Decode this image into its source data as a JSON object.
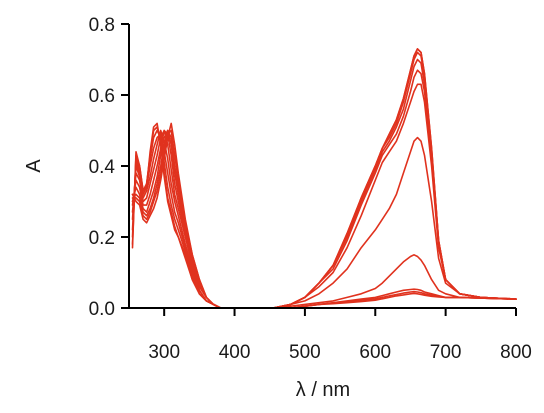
{
  "chart_data": {
    "type": "line",
    "title": "",
    "xlabel": "λ / nm",
    "ylabel": "A",
    "xlim": [
      250,
      800
    ],
    "ylim": [
      0.0,
      0.8
    ],
    "grid": false,
    "x_ticks": [
      300,
      400,
      500,
      600,
      700,
      800
    ],
    "x_tick_labels": [
      "300",
      "400",
      "500",
      "600",
      "700",
      "800"
    ],
    "y_ticks": [
      0.0,
      0.2,
      0.4,
      0.6,
      0.8
    ],
    "y_tick_labels": [
      "0.0",
      "0.2",
      "0.4",
      "0.6",
      "0.8"
    ],
    "colors": {
      "series": "#e0321e",
      "axis": "#000000"
    },
    "x_uv": [
      255,
      260,
      265,
      270,
      275,
      280,
      285,
      290,
      295,
      300,
      305,
      310,
      315,
      320,
      330,
      340,
      350,
      360,
      370,
      380
    ],
    "x_vis": [
      455,
      480,
      500,
      520,
      540,
      560,
      580,
      600,
      610,
      620,
      630,
      640,
      650,
      655,
      660,
      665,
      670,
      680,
      690,
      700,
      720,
      750,
      800
    ],
    "series": [
      {
        "uv": [
          0.17,
          0.44,
          0.4,
          0.33,
          0.34,
          0.44,
          0.51,
          0.52,
          0.46,
          0.37,
          0.3,
          0.26,
          0.22,
          0.2,
          0.14,
          0.08,
          0.04,
          0.02,
          0.01,
          0.0
        ],
        "vis": [
          0.0,
          0.0,
          0.005,
          0.01,
          0.015,
          0.02,
          0.025,
          0.03,
          0.035,
          0.04,
          0.045,
          0.05,
          0.052,
          0.053,
          0.052,
          0.05,
          0.045,
          0.04,
          0.035,
          0.03,
          0.03,
          0.028,
          0.025
        ]
      },
      {
        "uv": [
          0.18,
          0.43,
          0.4,
          0.33,
          0.35,
          0.43,
          0.5,
          0.51,
          0.47,
          0.38,
          0.31,
          0.27,
          0.23,
          0.2,
          0.15,
          0.08,
          0.04,
          0.02,
          0.01,
          0.0
        ],
        "vis": [
          0.0,
          0.0,
          0.005,
          0.01,
          0.014,
          0.018,
          0.022,
          0.026,
          0.03,
          0.034,
          0.038,
          0.042,
          0.045,
          0.046,
          0.045,
          0.043,
          0.04,
          0.036,
          0.033,
          0.03,
          0.03,
          0.028,
          0.025
        ]
      },
      {
        "uv": [
          0.2,
          0.42,
          0.39,
          0.33,
          0.35,
          0.42,
          0.48,
          0.5,
          0.48,
          0.41,
          0.34,
          0.29,
          0.25,
          0.22,
          0.16,
          0.09,
          0.04,
          0.02,
          0.01,
          0.0
        ],
        "vis": [
          0.0,
          0.0,
          0.005,
          0.01,
          0.012,
          0.015,
          0.018,
          0.022,
          0.026,
          0.03,
          0.034,
          0.037,
          0.04,
          0.041,
          0.04,
          0.038,
          0.036,
          0.033,
          0.031,
          0.03,
          0.03,
          0.028,
          0.025
        ]
      },
      {
        "uv": [
          0.22,
          0.41,
          0.38,
          0.32,
          0.34,
          0.4,
          0.45,
          0.48,
          0.49,
          0.44,
          0.38,
          0.32,
          0.27,
          0.24,
          0.17,
          0.1,
          0.05,
          0.02,
          0.01,
          0.0
        ],
        "vis": [
          0.0,
          0.005,
          0.01,
          0.015,
          0.02,
          0.03,
          0.04,
          0.055,
          0.07,
          0.09,
          0.11,
          0.13,
          0.145,
          0.15,
          0.145,
          0.135,
          0.12,
          0.08,
          0.05,
          0.04,
          0.03,
          0.028,
          0.025
        ]
      },
      {
        "uv": [
          0.25,
          0.4,
          0.37,
          0.31,
          0.33,
          0.37,
          0.42,
          0.46,
          0.5,
          0.47,
          0.42,
          0.35,
          0.3,
          0.26,
          0.18,
          0.11,
          0.05,
          0.02,
          0.01,
          0.0
        ],
        "vis": [
          0.0,
          0.01,
          0.02,
          0.04,
          0.07,
          0.11,
          0.17,
          0.22,
          0.25,
          0.28,
          0.32,
          0.38,
          0.44,
          0.47,
          0.48,
          0.47,
          0.43,
          0.3,
          0.14,
          0.07,
          0.04,
          0.03,
          0.025
        ]
      },
      {
        "uv": [
          0.27,
          0.38,
          0.36,
          0.3,
          0.31,
          0.35,
          0.39,
          0.43,
          0.48,
          0.5,
          0.46,
          0.39,
          0.32,
          0.28,
          0.2,
          0.12,
          0.06,
          0.03,
          0.01,
          0.0
        ],
        "vis": [
          0.0,
          0.01,
          0.03,
          0.06,
          0.1,
          0.17,
          0.26,
          0.36,
          0.41,
          0.44,
          0.47,
          0.52,
          0.58,
          0.61,
          0.63,
          0.63,
          0.58,
          0.4,
          0.17,
          0.08,
          0.04,
          0.03,
          0.025
        ]
      },
      {
        "uv": [
          0.29,
          0.36,
          0.34,
          0.29,
          0.29,
          0.32,
          0.36,
          0.4,
          0.45,
          0.5,
          0.49,
          0.43,
          0.35,
          0.3,
          0.21,
          0.13,
          0.06,
          0.03,
          0.01,
          0.0
        ],
        "vis": [
          0.0,
          0.01,
          0.03,
          0.07,
          0.11,
          0.19,
          0.29,
          0.38,
          0.43,
          0.46,
          0.49,
          0.54,
          0.61,
          0.65,
          0.67,
          0.66,
          0.61,
          0.42,
          0.18,
          0.08,
          0.04,
          0.03,
          0.025
        ]
      },
      {
        "uv": [
          0.3,
          0.34,
          0.32,
          0.28,
          0.27,
          0.3,
          0.33,
          0.37,
          0.43,
          0.48,
          0.5,
          0.46,
          0.38,
          0.32,
          0.22,
          0.14,
          0.07,
          0.03,
          0.01,
          0.0
        ],
        "vis": [
          0.0,
          0.01,
          0.03,
          0.07,
          0.12,
          0.2,
          0.3,
          0.39,
          0.44,
          0.47,
          0.51,
          0.56,
          0.64,
          0.68,
          0.7,
          0.69,
          0.63,
          0.43,
          0.18,
          0.08,
          0.04,
          0.03,
          0.025
        ]
      },
      {
        "uv": [
          0.31,
          0.32,
          0.31,
          0.27,
          0.26,
          0.28,
          0.31,
          0.35,
          0.4,
          0.46,
          0.5,
          0.48,
          0.4,
          0.34,
          0.23,
          0.14,
          0.07,
          0.03,
          0.01,
          0.0
        ],
        "vis": [
          0.0,
          0.01,
          0.03,
          0.07,
          0.12,
          0.2,
          0.31,
          0.4,
          0.45,
          0.48,
          0.52,
          0.58,
          0.66,
          0.7,
          0.72,
          0.71,
          0.65,
          0.44,
          0.19,
          0.08,
          0.04,
          0.03,
          0.025
        ]
      },
      {
        "uv": [
          0.32,
          0.31,
          0.3,
          0.26,
          0.25,
          0.27,
          0.3,
          0.33,
          0.38,
          0.44,
          0.49,
          0.5,
          0.43,
          0.36,
          0.24,
          0.15,
          0.08,
          0.03,
          0.01,
          0.0
        ],
        "vis": [
          0.0,
          0.01,
          0.03,
          0.07,
          0.12,
          0.21,
          0.31,
          0.4,
          0.45,
          0.49,
          0.53,
          0.59,
          0.67,
          0.71,
          0.73,
          0.72,
          0.66,
          0.45,
          0.19,
          0.08,
          0.04,
          0.03,
          0.025
        ]
      },
      {
        "uv": [
          0.32,
          0.3,
          0.29,
          0.25,
          0.24,
          0.26,
          0.28,
          0.31,
          0.36,
          0.42,
          0.48,
          0.52,
          0.46,
          0.38,
          0.25,
          0.15,
          0.08,
          0.03,
          0.01,
          0.0
        ],
        "vis": [
          0.0,
          0.01,
          0.03,
          0.07,
          0.12,
          0.21,
          0.31,
          0.4,
          0.45,
          0.49,
          0.53,
          0.59,
          0.67,
          0.71,
          0.73,
          0.72,
          0.66,
          0.45,
          0.19,
          0.08,
          0.04,
          0.03,
          0.025
        ]
      }
    ]
  }
}
